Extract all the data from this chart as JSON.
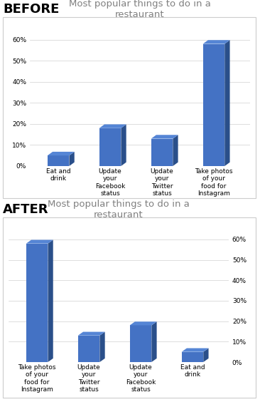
{
  "title": "Most popular things to do in a\nrestaurant",
  "before_categories": [
    "Eat and\ndrink",
    "Update\nyour\nFacebook\nstatus",
    "Update\nyour\nTwitter\nstatus",
    "Take photos\nof your\nfood for\nInstagram"
  ],
  "before_values": [
    5,
    18,
    13,
    58
  ],
  "after_categories": [
    "Take photos\nof your\nfood for\nInstagram",
    "Update\nyour\nTwitter\nstatus",
    "Update\nyour\nFacebook\nstatus",
    "Eat and\ndrink"
  ],
  "after_values": [
    58,
    13,
    18,
    5
  ],
  "bar_color": "#4472c4",
  "bar_color_dark": "#2a4f8a",
  "bar_color_top": "#5585d5",
  "background_color": "#ffffff",
  "chart_bg": "#ffffff",
  "box_color": "#cccccc",
  "grid_color": "#d0d0d0",
  "title_color": "#808080",
  "yticks": [
    0,
    10,
    20,
    30,
    40,
    50,
    60
  ],
  "ylim": [
    0,
    68
  ],
  "before_label": "BEFORE",
  "after_label": "AFTER",
  "label_fontsize": 13,
  "title_fontsize": 9.5,
  "tick_fontsize": 6.5,
  "cat_fontsize": 6.5
}
